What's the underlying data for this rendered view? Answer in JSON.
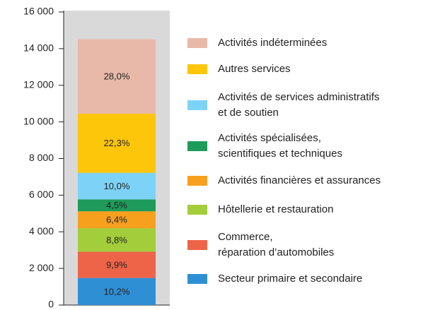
{
  "chart_data": {
    "type": "stacked_bar",
    "categories": [
      null
    ],
    "series": [
      {
        "name": "Secteur primaire et secondaire",
        "color": "#2f8fd5",
        "values": [
          1479
        ],
        "value_labels": [
          "10,2%"
        ]
      },
      {
        "name": "Commerce,\nréparation d’automobiles",
        "color": "#ee6449",
        "values": [
          1435
        ],
        "value_labels": [
          "9,9%"
        ]
      },
      {
        "name": "Hôtellerie et restauration",
        "color": "#a3cd3b",
        "values": [
          1276
        ],
        "value_labels": [
          "8,8%"
        ]
      },
      {
        "name": "Activités financières et assurances",
        "color": "#f7a01e",
        "values": [
          928
        ],
        "value_labels": [
          "6,4%"
        ]
      },
      {
        "name": "Activités spécialisées,\nscientifiques et techniques",
        "color": "#1e9a5a",
        "values": [
          652
        ],
        "value_labels": [
          "4,5%"
        ]
      },
      {
        "name": "Activités de services administratifs\net de soutien",
        "color": "#7dd3f7",
        "values": [
          1450
        ],
        "value_labels": [
          "10,0%"
        ]
      },
      {
        "name": "Autres services",
        "color": "#fdc60b",
        "values": [
          3233
        ],
        "value_labels": [
          "22,3%"
        ]
      },
      {
        "name": "Activités indéterminées",
        "color": "#e8b9a8",
        "values": [
          4060
        ],
        "value_labels": [
          "28,0%"
        ]
      }
    ],
    "ylim": [
      0,
      16000
    ],
    "yticks": [
      0,
      {
        "value": 2000,
        "label": "2 000"
      },
      {
        "value": 4000,
        "label": "4 000"
      },
      {
        "value": 6000,
        "label": "6 000"
      },
      {
        "value": 8000,
        "label": "8 000"
      },
      {
        "value": 10000,
        "label": "10 000"
      },
      {
        "value": 12000,
        "label": "12 000"
      },
      {
        "value": 14000,
        "label": "14 000"
      },
      {
        "value": 16000,
        "label": "16 000"
      }
    ],
    "plot_background": "#d9d9d9"
  }
}
